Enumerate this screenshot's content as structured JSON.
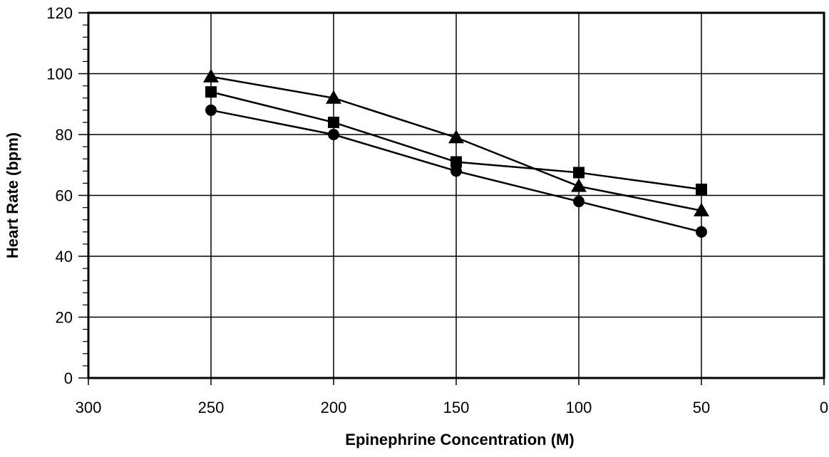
{
  "chart_data": {
    "type": "line",
    "title": "",
    "xlabel": "Epinephrine Concentration (M)",
    "ylabel": "Heart Rate (bpm)",
    "xlim": [
      300,
      0
    ],
    "ylim": [
      0,
      120
    ],
    "x_ticks": [
      300,
      250,
      200,
      150,
      100,
      50,
      0
    ],
    "y_ticks": [
      0,
      20,
      40,
      60,
      80,
      100,
      120
    ],
    "y_minor_step": 4,
    "grid": true,
    "x": [
      250,
      200,
      150,
      100,
      50
    ],
    "series": [
      {
        "marker": "circle",
        "values": [
          88,
          80,
          68,
          58,
          48
        ]
      },
      {
        "marker": "square",
        "values": [
          94,
          84,
          71,
          67.5,
          62
        ]
      },
      {
        "marker": "triangle",
        "values": [
          99,
          92,
          79,
          63,
          55
        ]
      }
    ],
    "colors": {
      "line": "#000000",
      "marker": "#000000",
      "grid": "#000000"
    }
  }
}
